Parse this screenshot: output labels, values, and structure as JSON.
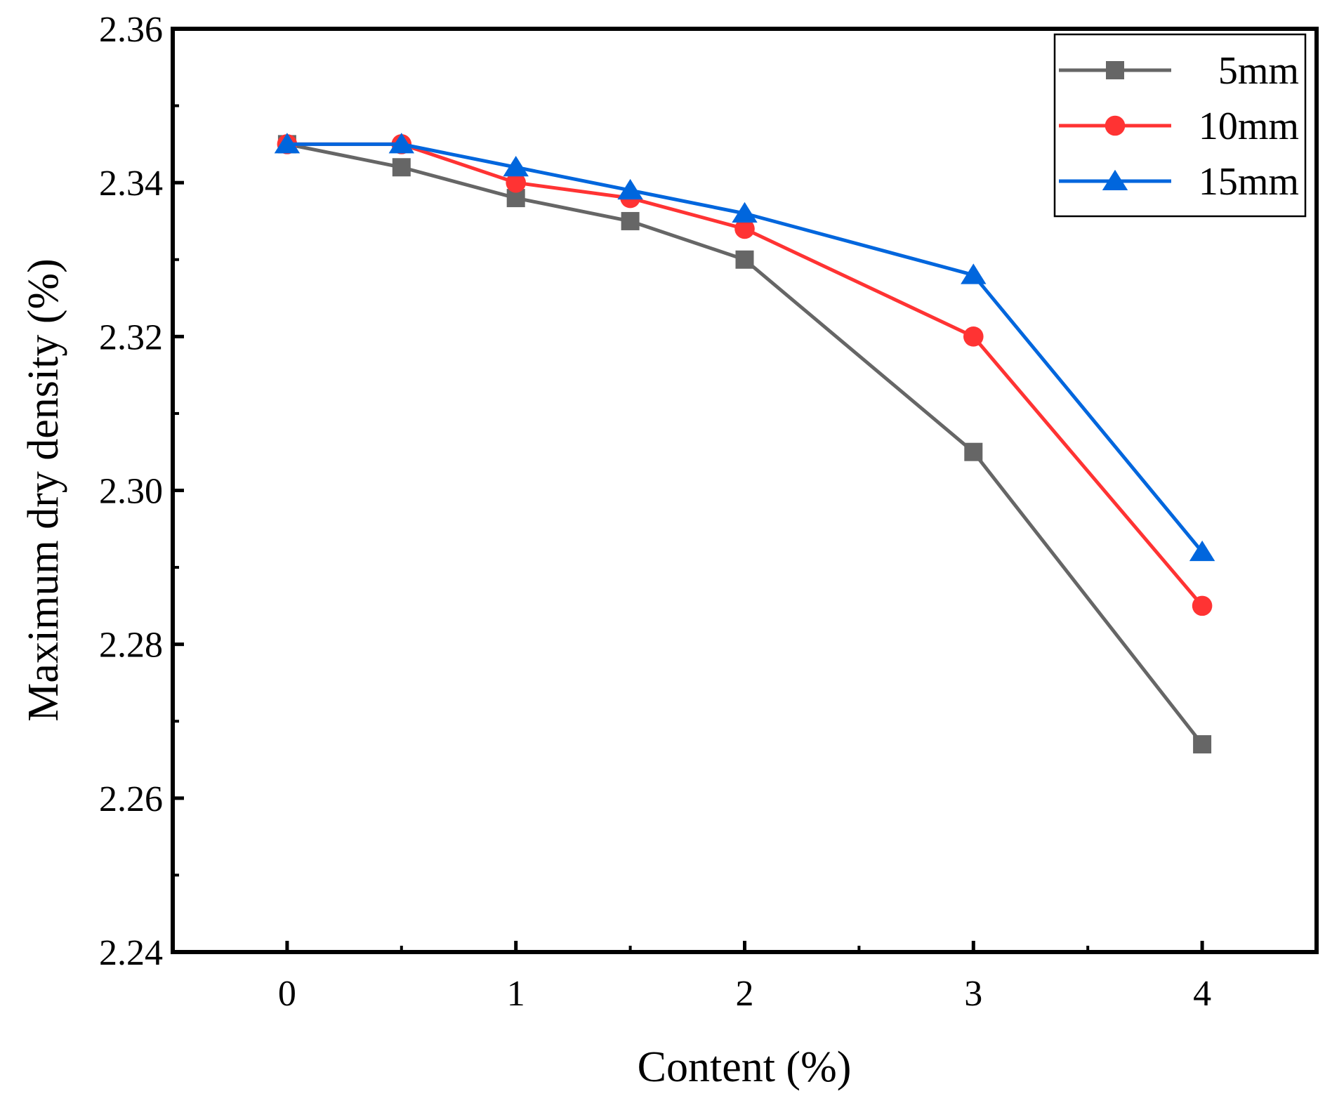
{
  "chart_data": {
    "type": "line",
    "title": "",
    "xlabel": "Content (%)",
    "ylabel": "Maximum dry density (%)",
    "xlim": [
      -0.5,
      4.5
    ],
    "ylim": [
      2.24,
      2.36
    ],
    "x_ticks": [
      "0",
      "1",
      "2",
      "3",
      "4"
    ],
    "y_ticks": [
      "2.24",
      "2.26",
      "2.28",
      "2.30",
      "2.32",
      "2.34",
      "2.36"
    ],
    "grid": false,
    "legend_position": "top-right",
    "x": [
      0,
      0.5,
      1,
      1.5,
      2,
      3,
      4
    ],
    "series": [
      {
        "name": "5mm",
        "color": "#666666",
        "marker": "square",
        "values": [
          2.345,
          2.342,
          2.338,
          2.335,
          2.33,
          2.305,
          2.267
        ]
      },
      {
        "name": "10mm",
        "color": "#ff3333",
        "marker": "circle",
        "values": [
          2.345,
          2.345,
          2.34,
          2.338,
          2.334,
          2.32,
          2.285
        ]
      },
      {
        "name": "15mm",
        "color": "#0066dd",
        "marker": "triangle",
        "values": [
          2.345,
          2.345,
          2.342,
          2.339,
          2.336,
          2.328,
          2.292
        ]
      }
    ]
  }
}
